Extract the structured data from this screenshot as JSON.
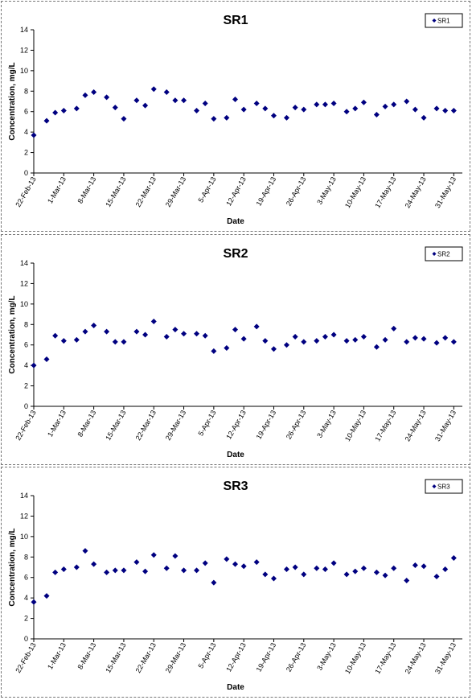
{
  "chart_data": [
    {
      "type": "scatter",
      "title": "SR1",
      "xlabel": "Date",
      "ylabel": "Concentration, mg/L",
      "ylim": [
        0,
        14
      ],
      "yticks": [
        "0",
        "2",
        "4",
        "6",
        "8",
        "10",
        "12",
        "14"
      ],
      "xlim": [
        "22-Feb-13",
        "2-Jun-13"
      ],
      "xticks": [
        "22-Feb-13",
        "1-Mar-13",
        "8-Mar-13",
        "15-Mar-13",
        "22-Mar-13",
        "29-Mar-13",
        "5-Apr-13",
        "12-Apr-13",
        "19-Apr-13",
        "26-Apr-13",
        "3-May-13",
        "10-May-13",
        "17-May-13",
        "24-May-13",
        "31-May-13"
      ],
      "grid": false,
      "legend": "top-right",
      "color": "#000080",
      "series": [
        {
          "name": "SR1",
          "x": [
            "22-Feb-13",
            "25-Feb-13",
            "27-Feb-13",
            "1-Mar-13",
            "4-Mar-13",
            "6-Mar-13",
            "8-Mar-13",
            "11-Mar-13",
            "13-Mar-13",
            "15-Mar-13",
            "18-Mar-13",
            "20-Mar-13",
            "22-Mar-13",
            "25-Mar-13",
            "27-Mar-13",
            "29-Mar-13",
            "1-Apr-13",
            "3-Apr-13",
            "5-Apr-13",
            "8-Apr-13",
            "10-Apr-13",
            "12-Apr-13",
            "15-Apr-13",
            "17-Apr-13",
            "19-Apr-13",
            "22-Apr-13",
            "24-Apr-13",
            "26-Apr-13",
            "29-Apr-13",
            "1-May-13",
            "3-May-13",
            "6-May-13",
            "8-May-13",
            "10-May-13",
            "13-May-13",
            "15-May-13",
            "17-May-13",
            "20-May-13",
            "22-May-13",
            "24-May-13",
            "27-May-13",
            "29-May-13",
            "31-May-13"
          ],
          "y": [
            3.7,
            5.1,
            5.9,
            6.1,
            6.3,
            7.6,
            7.9,
            7.4,
            6.4,
            5.3,
            7.1,
            6.6,
            8.2,
            7.9,
            7.1,
            7.1,
            6.1,
            6.8,
            5.3,
            5.4,
            7.2,
            6.2,
            6.8,
            6.3,
            5.6,
            5.4,
            6.4,
            6.2,
            6.7,
            6.7,
            6.8,
            6.0,
            6.3,
            6.9,
            5.7,
            6.5,
            6.7,
            7.0,
            6.2,
            5.4,
            6.3,
            6.1,
            6.1
          ]
        }
      ]
    },
    {
      "type": "scatter",
      "title": "SR2",
      "xlabel": "Date",
      "ylabel": "Concentration, mg/L",
      "ylim": [
        0,
        14
      ],
      "yticks": [
        "0",
        "2",
        "4",
        "6",
        "8",
        "10",
        "12",
        "14"
      ],
      "xlim": [
        "22-Feb-13",
        "2-Jun-13"
      ],
      "xticks": [
        "22-Feb-13",
        "1-Mar-13",
        "8-Mar-13",
        "15-Mar-13",
        "22-Mar-13",
        "29-Mar-13",
        "5-Apr-13",
        "12-Apr-13",
        "19-Apr-13",
        "26-Apr-13",
        "3-May-13",
        "10-May-13",
        "17-May-13",
        "24-May-13",
        "31-May-13"
      ],
      "grid": false,
      "legend": "top-right",
      "color": "#000080",
      "series": [
        {
          "name": "SR2",
          "x": [
            "22-Feb-13",
            "25-Feb-13",
            "27-Feb-13",
            "1-Mar-13",
            "4-Mar-13",
            "6-Mar-13",
            "8-Mar-13",
            "11-Mar-13",
            "13-Mar-13",
            "15-Mar-13",
            "18-Mar-13",
            "20-Mar-13",
            "22-Mar-13",
            "25-Mar-13",
            "27-Mar-13",
            "29-Mar-13",
            "1-Apr-13",
            "3-Apr-13",
            "5-Apr-13",
            "8-Apr-13",
            "10-Apr-13",
            "12-Apr-13",
            "15-Apr-13",
            "17-Apr-13",
            "19-Apr-13",
            "22-Apr-13",
            "24-Apr-13",
            "26-Apr-13",
            "29-Apr-13",
            "1-May-13",
            "3-May-13",
            "6-May-13",
            "8-May-13",
            "10-May-13",
            "13-May-13",
            "15-May-13",
            "17-May-13",
            "20-May-13",
            "22-May-13",
            "24-May-13",
            "27-May-13",
            "29-May-13",
            "31-May-13"
          ],
          "y": [
            4.0,
            4.6,
            6.9,
            6.4,
            6.5,
            7.3,
            7.9,
            7.3,
            6.3,
            6.3,
            7.3,
            7.0,
            8.3,
            6.8,
            7.5,
            7.1,
            7.1,
            6.9,
            5.4,
            5.7,
            7.5,
            6.6,
            7.8,
            6.4,
            5.6,
            6.0,
            6.8,
            6.3,
            6.4,
            6.8,
            7.0,
            6.4,
            6.5,
            6.8,
            5.8,
            6.5,
            7.6,
            6.3,
            6.7,
            6.6,
            6.2,
            6.7,
            6.3
          ]
        }
      ]
    },
    {
      "type": "scatter",
      "title": "SR3",
      "xlabel": "Date",
      "ylabel": "Concentration, mg/L",
      "ylim": [
        0,
        14
      ],
      "yticks": [
        "0",
        "2",
        "4",
        "6",
        "8",
        "10",
        "12",
        "14"
      ],
      "xlim": [
        "22-Feb-13",
        "2-Jun-13"
      ],
      "xticks": [
        "22-Feb-13",
        "1-Mar-13",
        "8-Mar-13",
        "15-Mar-13",
        "22-Mar-13",
        "29-Mar-13",
        "5-Apr-13",
        "12-Apr-13",
        "19-Apr-13",
        "26-Apr-13",
        "3-May-13",
        "10-May-13",
        "17-May-13",
        "24-May-13",
        "31-May-13"
      ],
      "grid": false,
      "legend": "top-right",
      "color": "#000080",
      "series": [
        {
          "name": "SR3",
          "x": [
            "22-Feb-13",
            "25-Feb-13",
            "27-Feb-13",
            "1-Mar-13",
            "4-Mar-13",
            "6-Mar-13",
            "8-Mar-13",
            "11-Mar-13",
            "13-Mar-13",
            "15-Mar-13",
            "18-Mar-13",
            "20-Mar-13",
            "22-Mar-13",
            "25-Mar-13",
            "27-Mar-13",
            "29-Mar-13",
            "1-Apr-13",
            "3-Apr-13",
            "5-Apr-13",
            "8-Apr-13",
            "10-Apr-13",
            "12-Apr-13",
            "15-Apr-13",
            "17-Apr-13",
            "19-Apr-13",
            "22-Apr-13",
            "24-Apr-13",
            "26-Apr-13",
            "29-Apr-13",
            "1-May-13",
            "3-May-13",
            "6-May-13",
            "8-May-13",
            "10-May-13",
            "13-May-13",
            "15-May-13",
            "17-May-13",
            "20-May-13",
            "22-May-13",
            "24-May-13",
            "27-May-13",
            "29-May-13",
            "31-May-13"
          ],
          "y": [
            3.6,
            4.2,
            6.5,
            6.8,
            7.0,
            8.6,
            7.3,
            6.5,
            6.7,
            6.7,
            7.5,
            6.6,
            8.2,
            6.9,
            8.1,
            6.7,
            6.7,
            7.4,
            5.5,
            7.8,
            7.3,
            7.1,
            7.5,
            6.3,
            5.9,
            6.8,
            7.0,
            6.3,
            6.9,
            6.8,
            7.4,
            6.3,
            6.6,
            6.9,
            6.5,
            6.2,
            6.9,
            5.7,
            7.2,
            7.1,
            6.1,
            6.8,
            7.9
          ]
        }
      ]
    }
  ]
}
